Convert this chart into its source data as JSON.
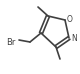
{
  "bg_color": "#ffffff",
  "bond_color": "#404040",
  "line_width": 1.2,
  "fig_width": 0.8,
  "fig_height": 0.74,
  "dpi": 100,
  "O_color": "#404040",
  "N_color": "#404040",
  "Br_color": "#404040",
  "Br_label": "Br",
  "O_label": "O",
  "N_label": "N",
  "font_size_atom": 5.5,
  "font_size_br": 6.0
}
